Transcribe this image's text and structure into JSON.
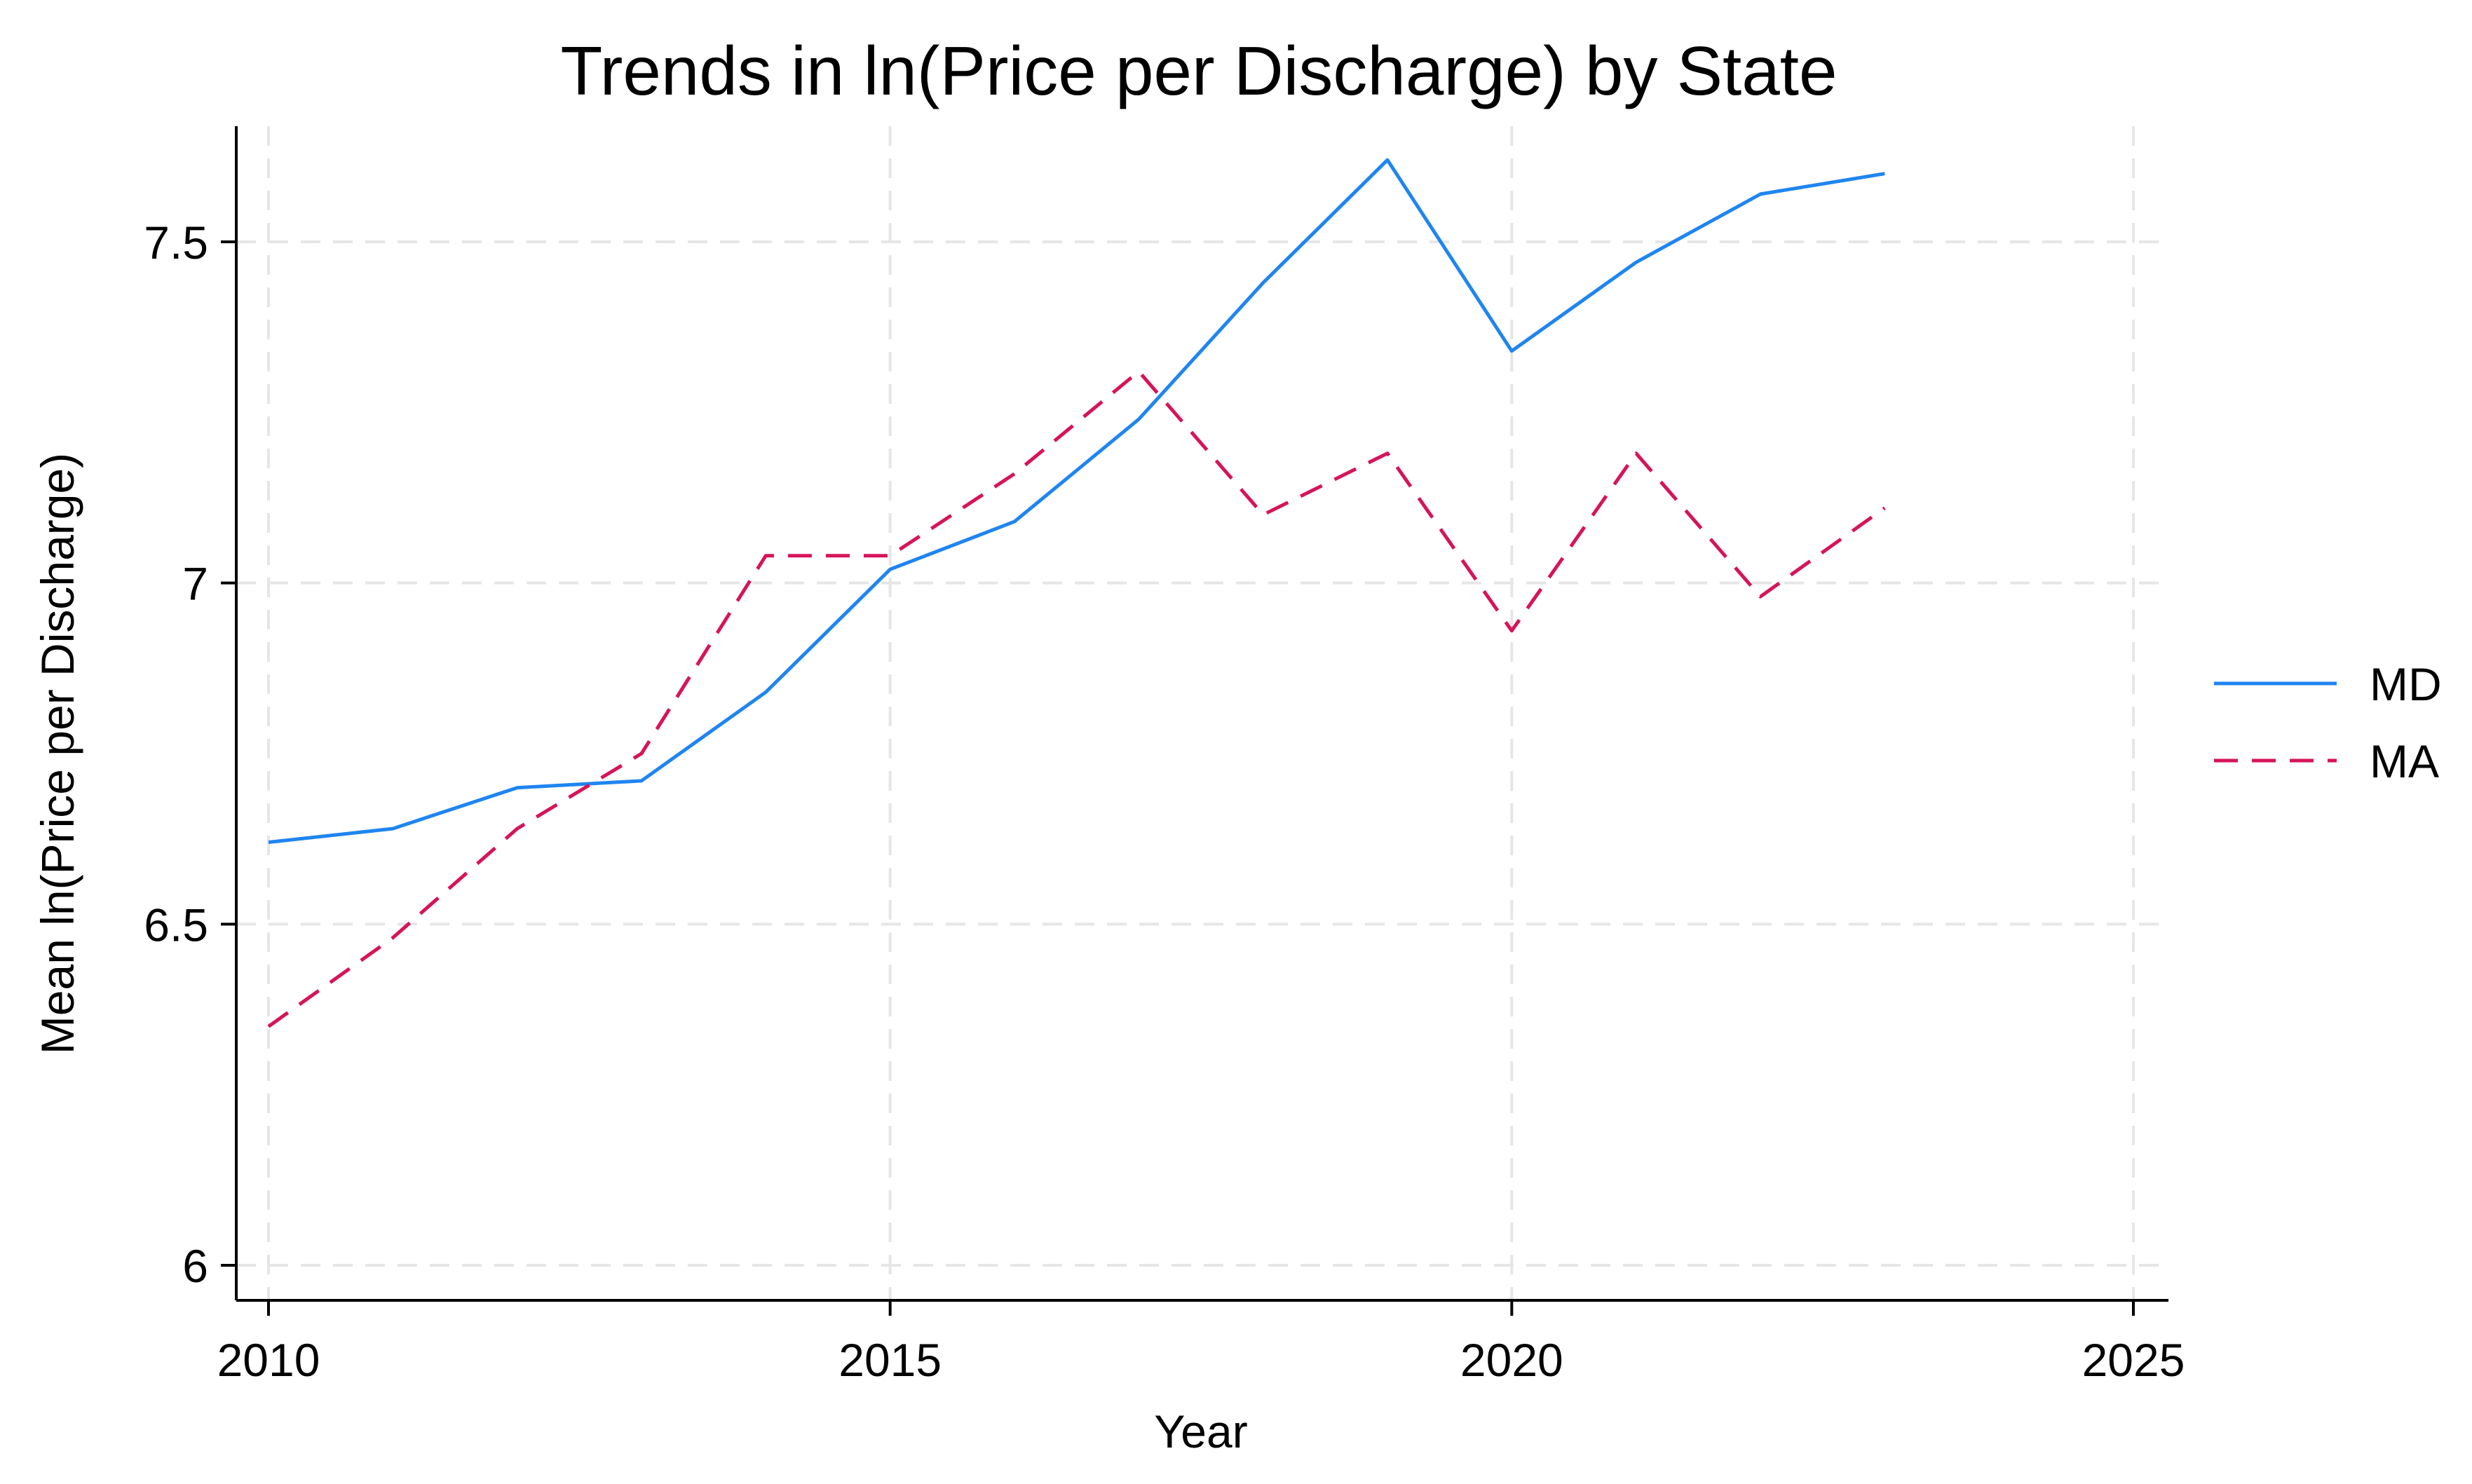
{
  "chart_data": {
    "type": "line",
    "title": "Trends in ln(Price per Discharge) by State",
    "xlabel": "Year",
    "ylabel": "Mean ln(Price per Discharge)",
    "xlim": [
      2010,
      2025
    ],
    "ylim": [
      6,
      7.65
    ],
    "xticks": [
      2010,
      2015,
      2020,
      2025
    ],
    "yticks": [
      6,
      6.5,
      7,
      7.5
    ],
    "ytick_labels": [
      "6",
      "6.5",
      "7",
      "7.5"
    ],
    "grid": true,
    "legend_position": "right",
    "x": [
      2010,
      2011,
      2012,
      2013,
      2014,
      2015,
      2016,
      2017,
      2018,
      2019,
      2020,
      2021,
      2022,
      2023
    ],
    "series": [
      {
        "name": "MD",
        "color": "#1f85f0",
        "dash": "solid",
        "values": [
          6.62,
          6.64,
          6.7,
          6.71,
          6.84,
          7.02,
          7.09,
          7.24,
          7.44,
          7.62,
          7.34,
          7.47,
          7.57,
          7.6
        ]
      },
      {
        "name": "MA",
        "color": "#d6145a",
        "dash": "dashed",
        "values": [
          6.35,
          6.48,
          6.64,
          6.75,
          7.04,
          7.04,
          7.16,
          7.31,
          7.1,
          7.19,
          6.93,
          7.19,
          6.98,
          7.11
        ]
      }
    ]
  }
}
